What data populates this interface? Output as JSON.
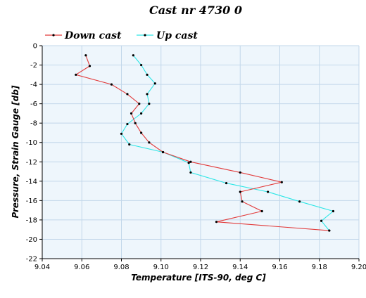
{
  "chart_data": {
    "type": "line",
    "title": "Cast nr 4730 0",
    "xlabel": "Temperature [ITS-90, deg C]",
    "ylabel": "Pressure, Strain Gauge [db]",
    "xlim": [
      9.04,
      9.2
    ],
    "ylim": [
      -22,
      0
    ],
    "x_ticks": [
      "9.04",
      "9.06",
      "9.08",
      "9.10",
      "9.12",
      "9.14",
      "9.16",
      "9.18",
      "9.20"
    ],
    "y_ticks": [
      "0",
      "-2",
      "-4",
      "-6",
      "-8",
      "-10",
      "-12",
      "-14",
      "-16",
      "-18",
      "-20",
      "-22"
    ],
    "grid": true,
    "legend_position": "top-left",
    "plot_background": "#eef6fc",
    "grid_color": "#c2d7ea",
    "series": [
      {
        "name": "Down cast",
        "color": "#e23a3a",
        "points": [
          [
            9.062,
            -1.0
          ],
          [
            9.064,
            -2.1
          ],
          [
            9.057,
            -3.0
          ],
          [
            9.075,
            -4.0
          ],
          [
            9.083,
            -5.0
          ],
          [
            9.089,
            -6.0
          ],
          [
            9.085,
            -7.0
          ],
          [
            9.087,
            -8.0
          ],
          [
            9.09,
            -9.0
          ],
          [
            9.094,
            -10.0
          ],
          [
            9.101,
            -11.0
          ],
          [
            9.115,
            -12.0
          ],
          [
            9.14,
            -13.1
          ],
          [
            9.161,
            -14.1
          ],
          [
            9.14,
            -15.1
          ],
          [
            9.141,
            -16.1
          ],
          [
            9.151,
            -17.1
          ],
          [
            9.128,
            -18.2
          ],
          [
            9.185,
            -19.1
          ]
        ]
      },
      {
        "name": "Up cast",
        "color": "#2ee6e6",
        "points": [
          [
            9.086,
            -1.0
          ],
          [
            9.09,
            -2.0
          ],
          [
            9.093,
            -3.0
          ],
          [
            9.097,
            -3.9
          ],
          [
            9.093,
            -5.0
          ],
          [
            9.094,
            -6.0
          ],
          [
            9.09,
            -7.0
          ],
          [
            9.083,
            -8.1
          ],
          [
            9.08,
            -9.1
          ],
          [
            9.084,
            -10.2
          ],
          [
            9.101,
            -11.0
          ],
          [
            9.114,
            -12.1
          ],
          [
            9.115,
            -13.1
          ],
          [
            9.133,
            -14.2
          ],
          [
            9.154,
            -15.1
          ],
          [
            9.17,
            -16.1
          ],
          [
            9.187,
            -17.1
          ],
          [
            9.181,
            -18.1
          ],
          [
            9.185,
            -19.1
          ]
        ]
      }
    ]
  }
}
